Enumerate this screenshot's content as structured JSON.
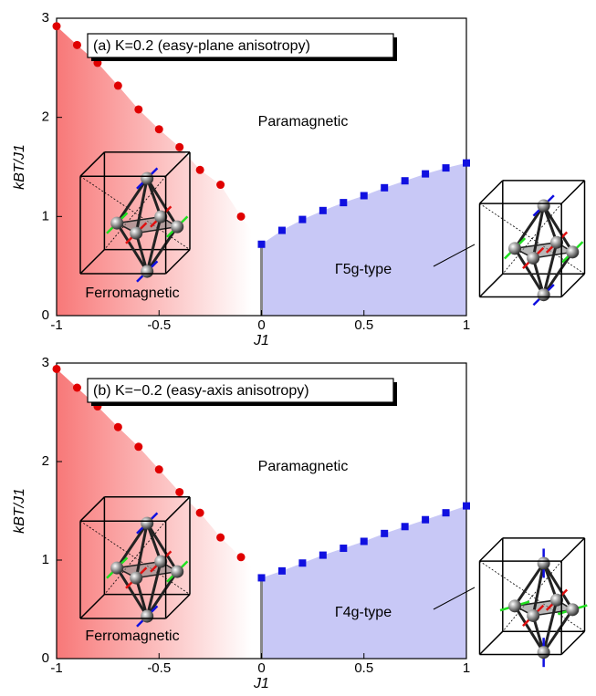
{
  "chart_data": [
    {
      "type": "scatter",
      "title": "(a) K=0.2 (easy-plane anisotropy)",
      "xlabel": "J1",
      "ylabel": "kBT/J1",
      "xlim": [
        -1,
        1
      ],
      "ylim": [
        0,
        3
      ],
      "xticks": [
        -1,
        -0.5,
        0,
        0.5,
        1
      ],
      "yticks": [
        0,
        1,
        2,
        3
      ],
      "annotations": [
        "Paramagnetic",
        "Ferromagnetic",
        "Γ5g-type"
      ],
      "series": [
        {
          "color": "#e00000",
          "x": [
            -1,
            -0.9,
            -0.8,
            -0.7,
            -0.6,
            -0.5,
            -0.4,
            -0.3,
            -0.2,
            -0.1
          ],
          "values": [
            2.92,
            2.73,
            2.55,
            2.32,
            2.08,
            1.88,
            1.7,
            1.47,
            1.32,
            1.0
          ]
        },
        {
          "color": "#1010e0",
          "x": [
            0,
            0.1,
            0.2,
            0.3,
            0.4,
            0.5,
            0.6,
            0.7,
            0.8,
            0.9,
            1
          ],
          "values": [
            0.72,
            0.86,
            0.97,
            1.06,
            1.14,
            1.21,
            1.29,
            1.36,
            1.43,
            1.49,
            1.54
          ]
        }
      ]
    },
    {
      "type": "scatter",
      "title": "(b) K=−0.2 (easy-axis anisotropy)",
      "xlabel": "J1",
      "ylabel": "kBT/J1",
      "xlim": [
        -1,
        1
      ],
      "ylim": [
        0,
        3
      ],
      "xticks": [
        -1,
        -0.5,
        0,
        0.5,
        1
      ],
      "yticks": [
        0,
        1,
        2,
        3
      ],
      "annotations": [
        "Paramagnetic",
        "Ferromagnetic",
        "Γ4g-type"
      ],
      "series": [
        {
          "color": "#e00000",
          "x": [
            -1,
            -0.9,
            -0.8,
            -0.7,
            -0.6,
            -0.5,
            -0.4,
            -0.3,
            -0.2,
            -0.1
          ],
          "values": [
            2.94,
            2.75,
            2.56,
            2.35,
            2.15,
            1.92,
            1.69,
            1.48,
            1.23,
            1.03
          ]
        },
        {
          "color": "#1010e0",
          "x": [
            0,
            0.1,
            0.2,
            0.3,
            0.4,
            0.5,
            0.6,
            0.7,
            0.8,
            0.9,
            1
          ],
          "values": [
            0.82,
            0.89,
            0.97,
            1.05,
            1.12,
            1.19,
            1.27,
            1.34,
            1.41,
            1.48,
            1.55
          ]
        }
      ]
    }
  ]
}
